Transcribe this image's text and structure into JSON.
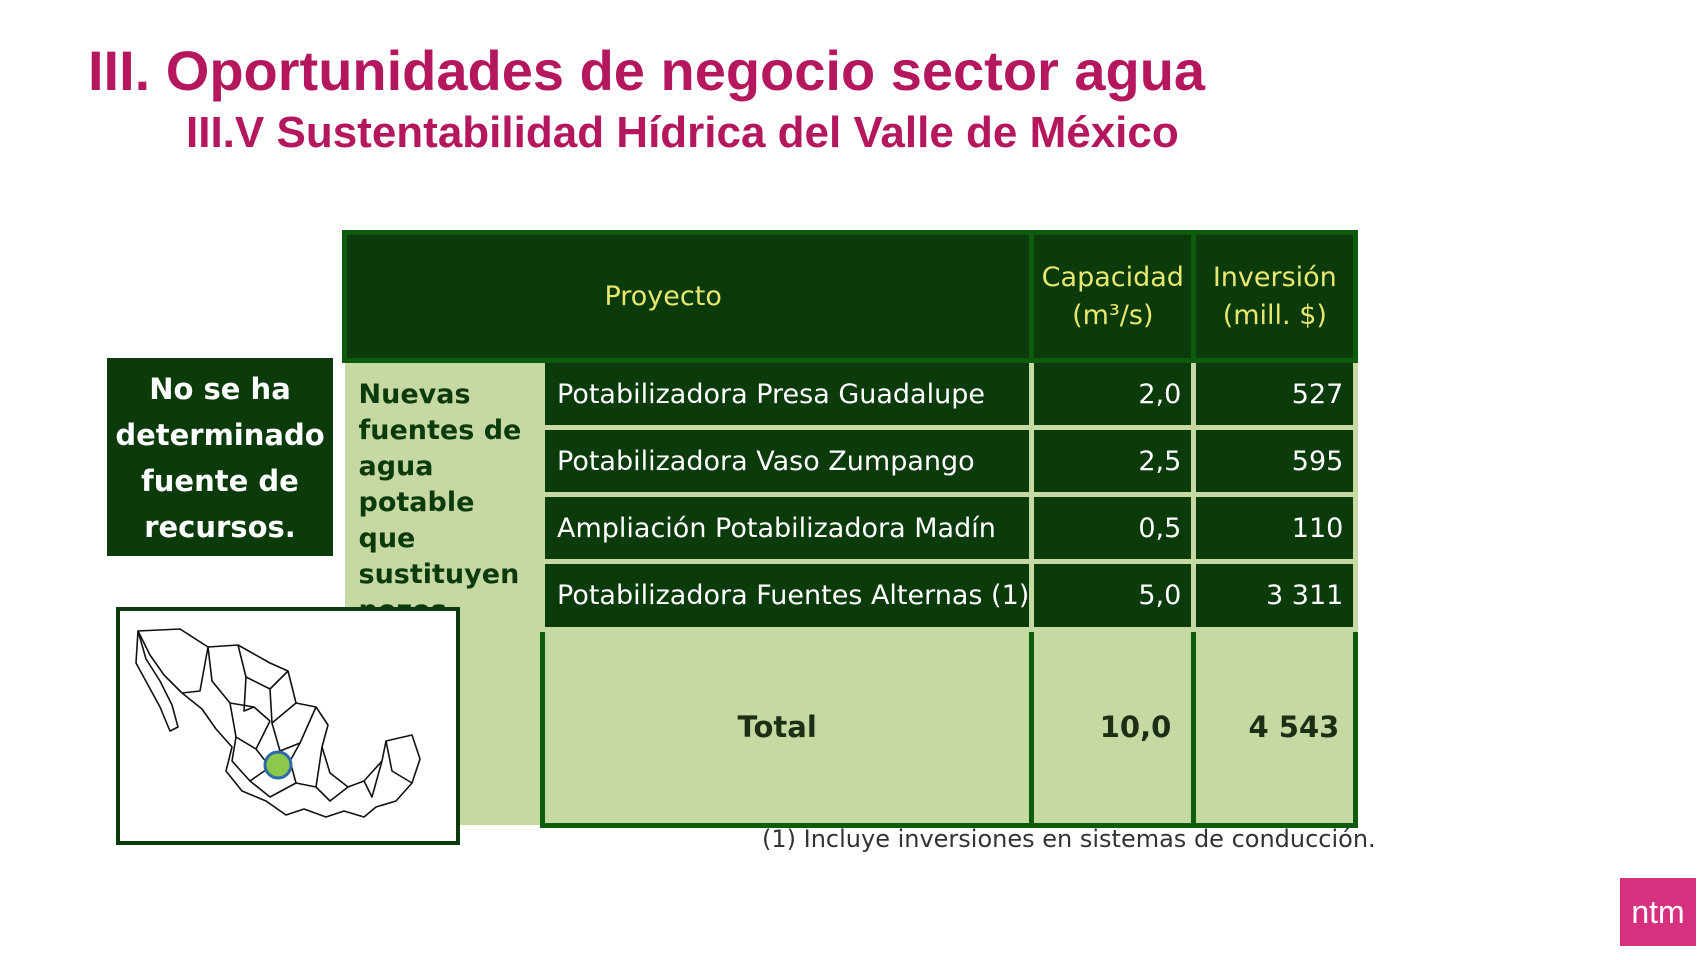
{
  "header": {
    "title": "III. Oportunidades de negocio sector agua",
    "subtitle": "III.V Sustentabilidad Hídrica del Valle de México"
  },
  "sidebox": {
    "lines": [
      "No se ha",
      "determinado",
      "fuente de",
      "recursos."
    ]
  },
  "table": {
    "headers": {
      "project": "Proyecto",
      "capacity": [
        "Capacidad",
        "(m³/s)"
      ],
      "investment": [
        "Inversión",
        "(mill. $)"
      ]
    },
    "category": [
      "Nuevas",
      "fuentes de",
      "agua",
      "potable que",
      "sustituyen",
      "pozos."
    ],
    "rows": [
      {
        "name": "Potabilizadora Presa Guadalupe",
        "capacity": "2,0",
        "investment": "527"
      },
      {
        "name": "Potabilizadora Vaso Zumpango",
        "capacity": "2,5",
        "investment": "595"
      },
      {
        "name": "Ampliación Potabilizadora Madín",
        "capacity": "0,5",
        "investment": "110"
      },
      {
        "name": "Potabilizadora Fuentes Alternas (1)",
        "capacity": "5,0",
        "investment": "3 311"
      }
    ],
    "total": {
      "label": "Total",
      "capacity": "10,0",
      "investment": "4 543"
    }
  },
  "footnote": "(1) Incluye inversiones en sistemas de conducción.",
  "map": {
    "icon": "mexico-map-icon",
    "marker_color": "#8cc84b"
  },
  "logo": {
    "text": "ntm",
    "color": "#d6317f"
  },
  "colors": {
    "title": "#b5175f",
    "table_dark": "#0b3a0b",
    "table_light": "#c7d9a2",
    "header_text": "#e8e870"
  }
}
